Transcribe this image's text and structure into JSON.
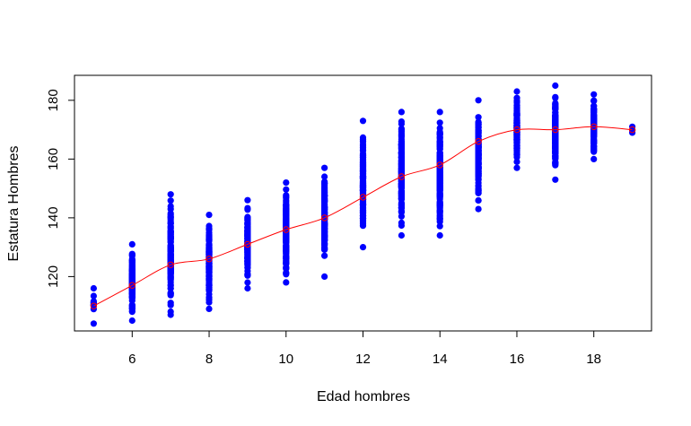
{
  "chart_data": {
    "type": "scatter",
    "title": "",
    "xlabel": "Edad hombres",
    "ylabel": "Estatura Hombres",
    "xlim": [
      4.5,
      19.5
    ],
    "ylim": [
      101.5,
      188.5
    ],
    "x_ticks": [
      6,
      8,
      10,
      12,
      14,
      16,
      18
    ],
    "y_ticks": [
      120,
      140,
      160,
      180
    ],
    "grid": false,
    "legend": "none",
    "colors": {
      "points": "#0000ff",
      "mean_line": "#ff0000",
      "mean_points": "#ff0000"
    },
    "point_ranges": [
      {
        "x": 5,
        "min": 104,
        "max": 116,
        "n": 12
      },
      {
        "x": 6,
        "min": 105,
        "max": 131,
        "n": 120
      },
      {
        "x": 7,
        "min": 107,
        "max": 148,
        "n": 140
      },
      {
        "x": 8,
        "min": 109,
        "max": 141,
        "n": 160
      },
      {
        "x": 9,
        "min": 116,
        "max": 146,
        "n": 150
      },
      {
        "x": 10,
        "min": 118,
        "max": 152,
        "n": 170
      },
      {
        "x": 11,
        "min": 120,
        "max": 157,
        "n": 170
      },
      {
        "x": 12,
        "min": 130,
        "max": 173,
        "n": 170
      },
      {
        "x": 13,
        "min": 134,
        "max": 176,
        "n": 170
      },
      {
        "x": 14,
        "min": 134,
        "max": 176,
        "n": 170
      },
      {
        "x": 15,
        "min": 143,
        "max": 180,
        "n": 160
      },
      {
        "x": 16,
        "min": 157,
        "max": 183,
        "n": 160
      },
      {
        "x": 17,
        "min": 153,
        "max": 185,
        "n": 150
      },
      {
        "x": 18,
        "min": 160,
        "max": 182,
        "n": 130
      },
      {
        "x": 19,
        "min": 169,
        "max": 171,
        "n": 3
      }
    ],
    "series": [
      {
        "x": [
          5,
          6,
          7,
          8,
          9,
          10,
          11,
          12,
          13,
          14,
          15,
          16,
          17,
          18,
          19
        ],
        "values": [
          110,
          117,
          124,
          126,
          131,
          136,
          140,
          147,
          154,
          158,
          166,
          170,
          170,
          171,
          170
        ]
      }
    ]
  }
}
